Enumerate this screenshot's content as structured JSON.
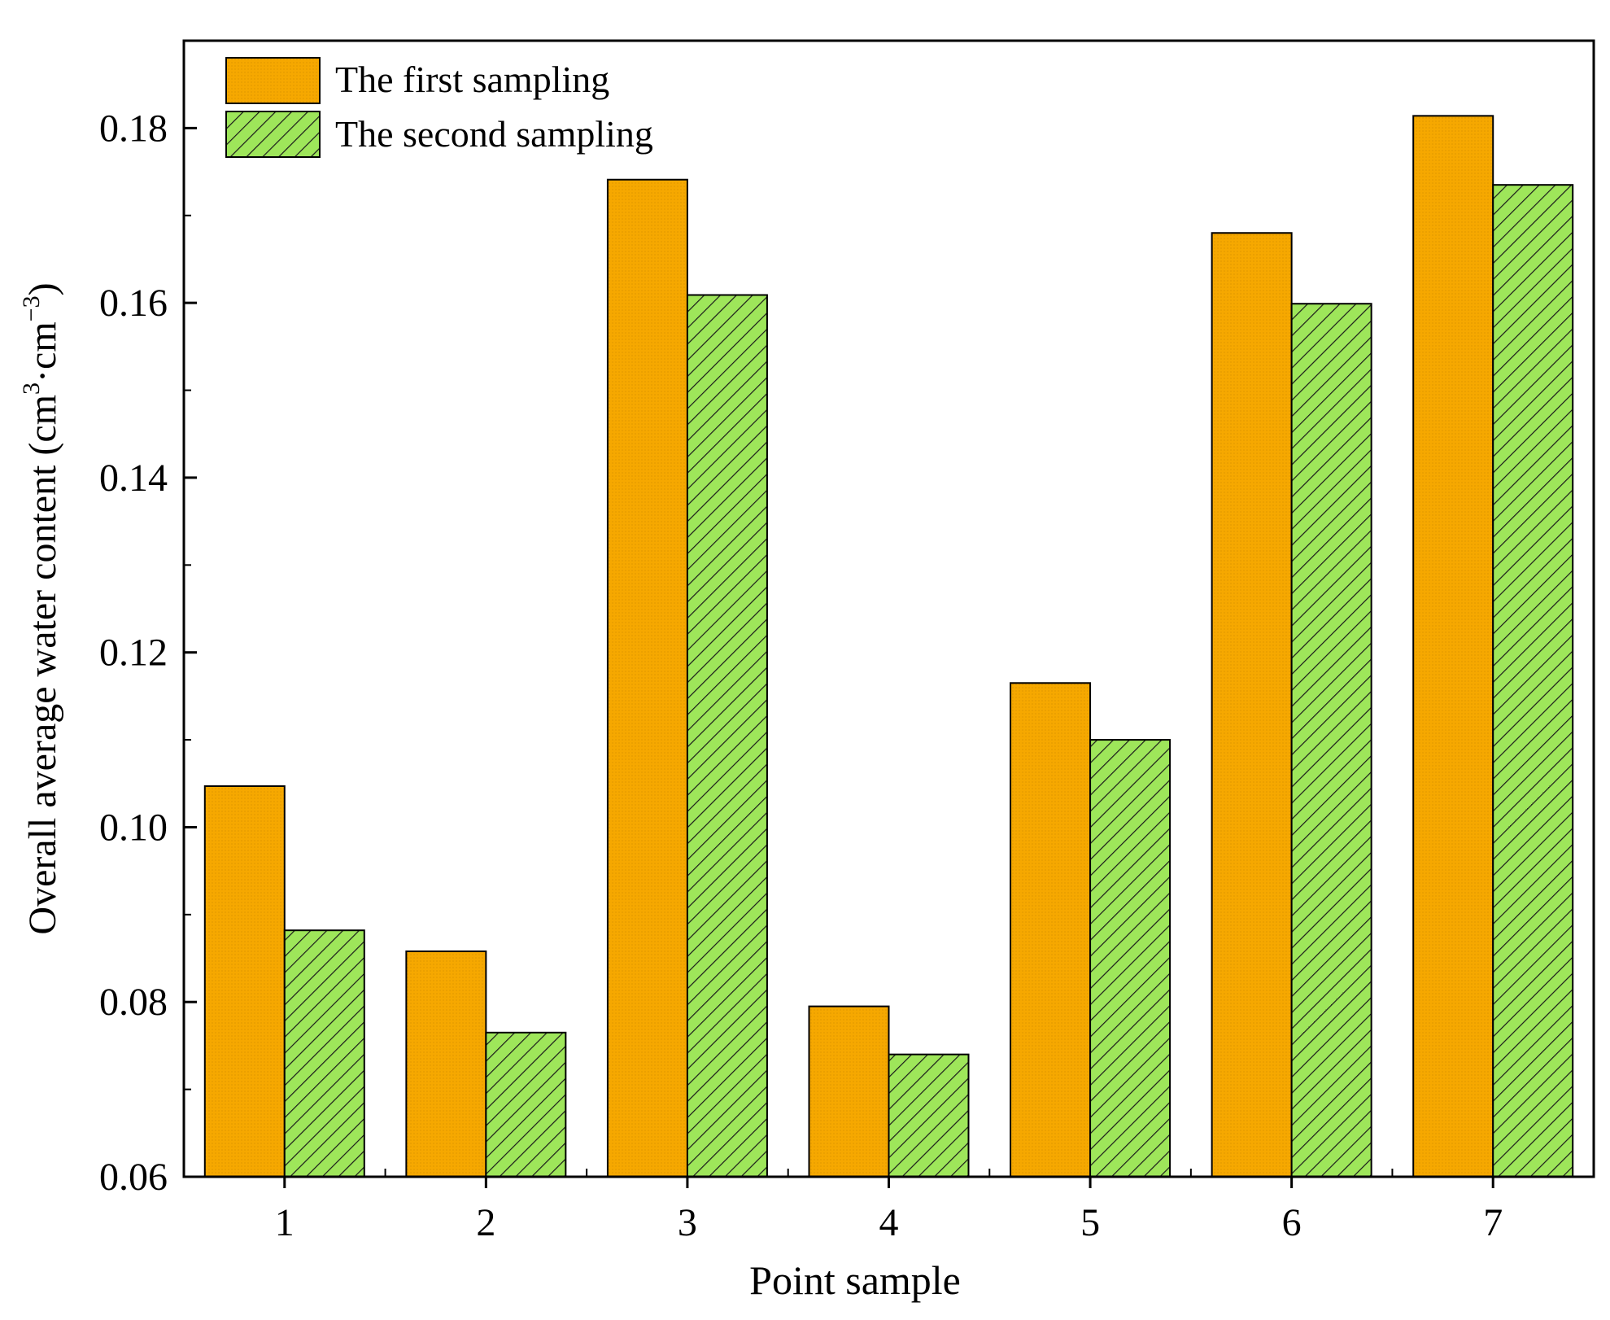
{
  "chart_data": {
    "type": "bar",
    "categories": [
      "1",
      "2",
      "3",
      "4",
      "5",
      "6",
      "7"
    ],
    "series": [
      {
        "name": "The first sampling",
        "values": [
          0.1047,
          0.0858,
          0.1741,
          0.0795,
          0.1165,
          0.168,
          0.1814
        ],
        "color": "#F6A800",
        "pattern": "dots"
      },
      {
        "name": "The second sampling",
        "values": [
          0.0882,
          0.0765,
          0.1609,
          0.074,
          0.11,
          0.1599,
          0.1735
        ],
        "color": "#9EE65A",
        "pattern": "diagonal-hatch"
      }
    ],
    "xlabel": "Point sample",
    "ylabel": "Overall average water content (cm",
    "ylabel_sup1": "3",
    "ylabel_mid": "·cm",
    "ylabel_sup2": "−3",
    "ylabel_end": ")",
    "ylim": [
      0.06,
      0.19
    ],
    "yticks": [
      "0.06",
      "0.08",
      "0.10",
      "0.12",
      "0.14",
      "0.16",
      "0.18"
    ],
    "grid": false,
    "legend_position": "top-left"
  }
}
